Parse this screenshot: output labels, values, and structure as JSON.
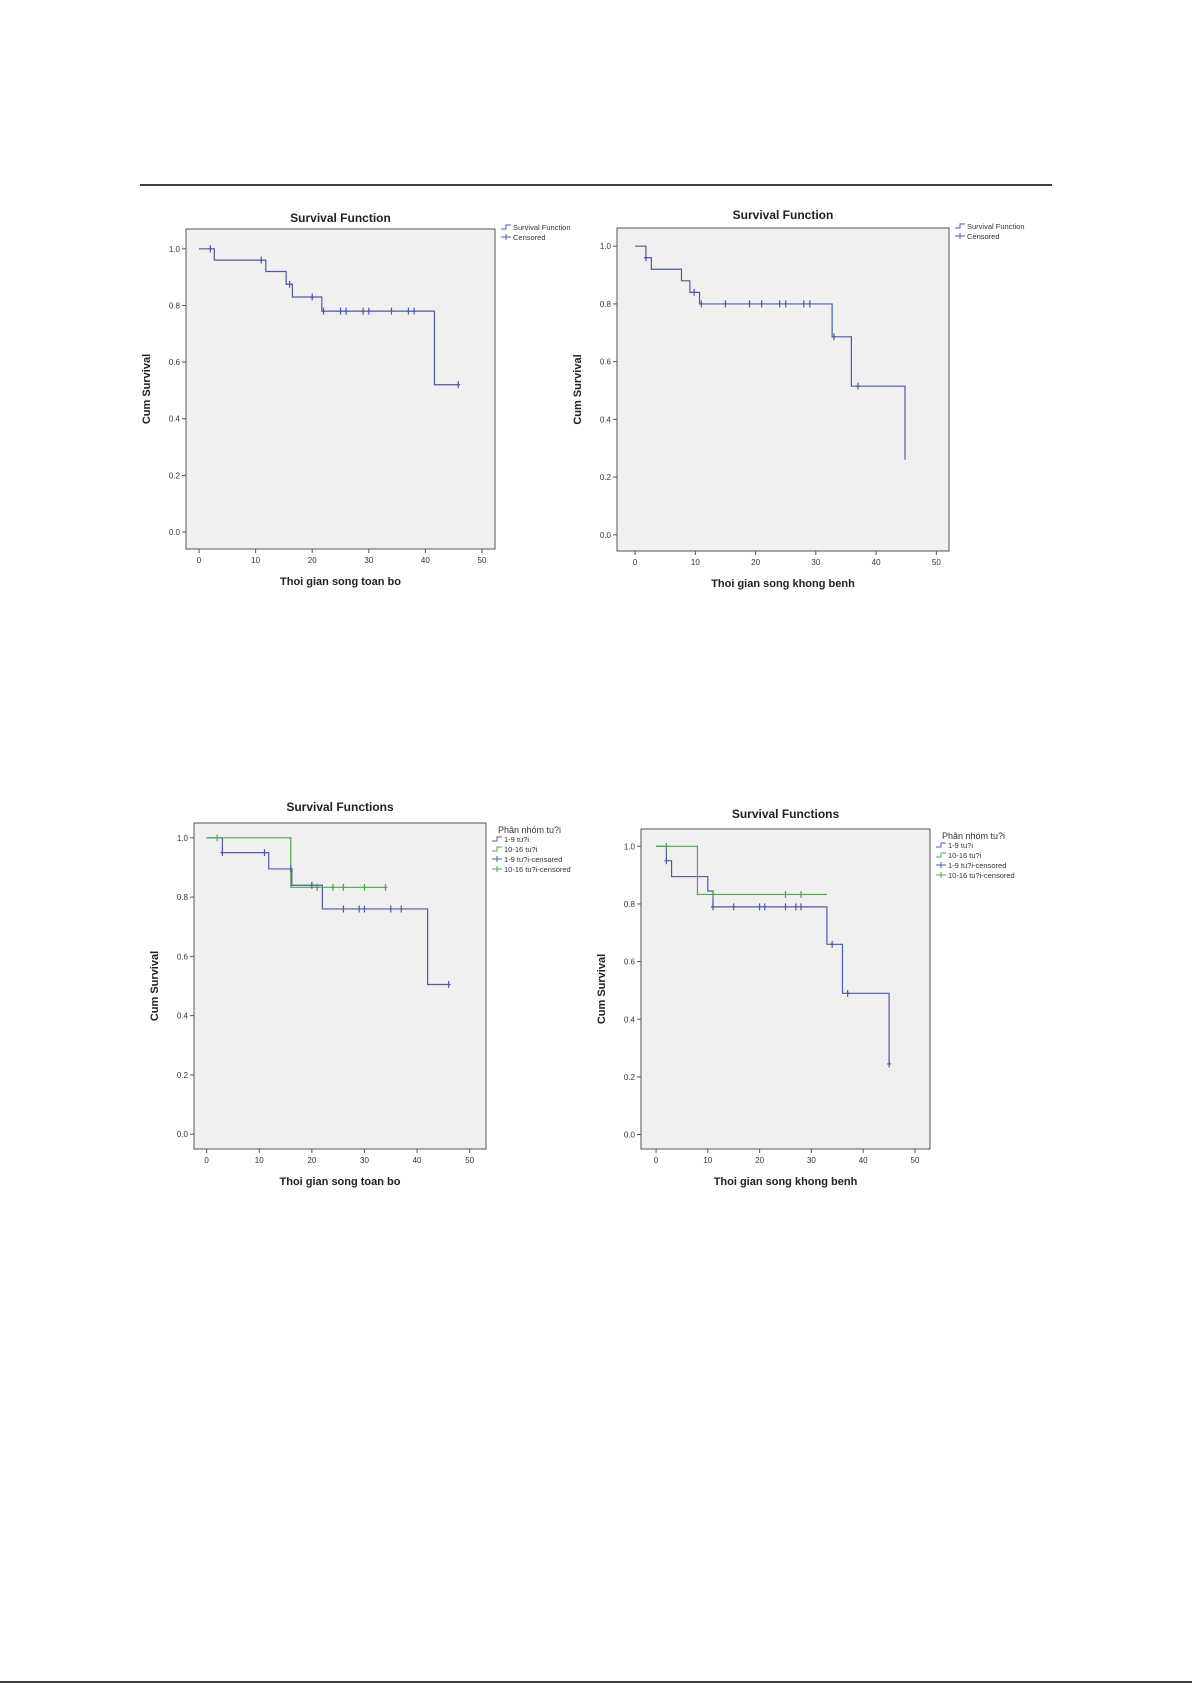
{
  "chart_data": [
    {
      "type": "step",
      "title": "Survival Function",
      "x_label": "Thoi gian song toan bo",
      "y_label": "Cum Survival",
      "xlim": [
        -2.3,
        52.3
      ],
      "ylim": [
        -0.06,
        1.07
      ],
      "xticks": [
        0,
        10,
        20,
        30,
        40,
        50
      ],
      "yticks": [
        {
          "value": 0,
          "label": "0.0"
        },
        {
          "value": 0.2,
          "label": "0.2"
        },
        {
          "value": 0.4,
          "label": "0.4"
        },
        {
          "value": 0.6,
          "label": "0.6"
        },
        {
          "value": 0.8,
          "label": "0.8"
        },
        {
          "value": 1,
          "label": "1.0"
        }
      ],
      "series": [
        {
          "name": "Survival Function",
          "kind": "step",
          "color": "#4b5ca6",
          "x": [
            0,
            2.7,
            11.8,
            15.4,
            16.5,
            21.7,
            41.6,
            45.8
          ],
          "values": [
            1,
            0.96,
            0.92,
            0.875,
            0.83,
            0.78,
            0.52,
            0.52
          ]
        },
        {
          "name": "Censored",
          "kind": "censored",
          "color": "#4b5ca6",
          "x": [
            2,
            11,
            16,
            20,
            22,
            25,
            26,
            29,
            30,
            34,
            37,
            38,
            45.8
          ],
          "values": [
            1,
            0.96,
            0.875,
            0.83,
            0.78,
            0.78,
            0.78,
            0.78,
            0.78,
            0.78,
            0.78,
            0.78,
            0.52
          ]
        }
      ]
    },
    {
      "type": "step",
      "title": "Survival Function",
      "x_label": "Thoi gian song khong benh",
      "y_label": "Cum Survival",
      "xlim": [
        -3,
        52.1
      ],
      "ylim": [
        -0.056,
        1.063
      ],
      "xticks": [
        0,
        10,
        20,
        30,
        40,
        50
      ],
      "yticks": [
        {
          "value": 0,
          "label": "0.0"
        },
        {
          "value": 0.2,
          "label": "0.2"
        },
        {
          "value": 0.4,
          "label": "0.4"
        },
        {
          "value": 0.6,
          "label": "0.6"
        },
        {
          "value": 0.8,
          "label": "0.8"
        },
        {
          "value": 1,
          "label": "1.0"
        }
      ],
      "series": [
        {
          "name": "Survival Function",
          "kind": "step",
          "color": "#4b5ca6",
          "x": [
            0,
            1.8,
            2.7,
            7.7,
            9.1,
            10.7,
            32.7,
            35.9,
            44.8
          ],
          "values": [
            1,
            0.96,
            0.92,
            0.88,
            0.84,
            0.8,
            0.686,
            0.515,
            0.26
          ]
        },
        {
          "name": "Censored",
          "kind": "censored",
          "color": "#4b5ca6",
          "x": [
            1.8,
            9.8,
            11,
            15,
            19,
            21,
            24,
            25,
            28,
            29,
            33,
            37
          ],
          "values": [
            0.96,
            0.84,
            0.8,
            0.8,
            0.8,
            0.8,
            0.8,
            0.8,
            0.8,
            0.8,
            0.686,
            0.515
          ]
        }
      ]
    },
    {
      "type": "step",
      "title": "Survival Functions",
      "x_label": "Thoi gian song toan bo",
      "y_label": "Cum Survival",
      "legend_title": "Phân nhóm tu?i",
      "xlim": [
        -2.4,
        53.1
      ],
      "ylim": [
        -0.05,
        1.05
      ],
      "xticks": [
        0,
        10,
        20,
        30,
        40,
        50
      ],
      "yticks": [
        {
          "value": 0,
          "label": "0.0"
        },
        {
          "value": 0.2,
          "label": "0.2"
        },
        {
          "value": 0.4,
          "label": "0.4"
        },
        {
          "value": 0.6,
          "label": "0.6"
        },
        {
          "value": 0.8,
          "label": "0.8"
        },
        {
          "value": 1,
          "label": "1.0"
        }
      ],
      "series": [
        {
          "name": "1-9 tu?i",
          "kind": "step",
          "color": "#4b5ca6",
          "x": [
            0,
            3,
            11.8,
            16.2,
            22,
            42,
            46
          ],
          "values": [
            1,
            0.95,
            0.895,
            0.84,
            0.76,
            0.505,
            0.505
          ]
        },
        {
          "name": "10-16 tu?i",
          "kind": "step",
          "color": "#4fa84a",
          "x": [
            0,
            16,
            34
          ],
          "values": [
            1,
            0.833,
            0.833
          ]
        },
        {
          "name": "1-9 tu?i-censored",
          "kind": "censored",
          "color": "#4b5ca6",
          "x": [
            3,
            11,
            16,
            20,
            26,
            29,
            30,
            35,
            37,
            46
          ],
          "values": [
            0.95,
            0.95,
            0.895,
            0.84,
            0.76,
            0.76,
            0.76,
            0.76,
            0.76,
            0.505
          ]
        },
        {
          "name": "10-16 tu?i-censored",
          "kind": "censored",
          "color": "#4fa84a",
          "x": [
            2,
            21,
            24,
            26,
            30,
            34
          ],
          "values": [
            1,
            0.833,
            0.833,
            0.833,
            0.833,
            0.833
          ]
        }
      ]
    },
    {
      "type": "step",
      "title": "Survival Functions",
      "x_label": "Thoi gian song khong benh",
      "y_label": "Cum Survival",
      "legend_title": "Phân nhóm tu?i",
      "xlim": [
        -2.9,
        52.9
      ],
      "ylim": [
        -0.05,
        1.06
      ],
      "xticks": [
        0,
        10,
        20,
        30,
        40,
        50
      ],
      "yticks": [
        {
          "value": 0,
          "label": "0.0"
        },
        {
          "value": 0.2,
          "label": "0.2"
        },
        {
          "value": 0.4,
          "label": "0.4"
        },
        {
          "value": 0.6,
          "label": "0.6"
        },
        {
          "value": 0.8,
          "label": "0.8"
        },
        {
          "value": 1,
          "label": "1.0"
        }
      ],
      "series": [
        {
          "name": "1-9 tu?i",
          "kind": "step",
          "color": "#4b5ca6",
          "x": [
            0,
            2,
            3,
            10,
            11,
            33,
            36,
            45
          ],
          "values": [
            1,
            0.95,
            0.895,
            0.845,
            0.79,
            0.66,
            0.49,
            0.245
          ]
        },
        {
          "name": "10-16 tu?i",
          "kind": "step",
          "color": "#4fa84a",
          "x": [
            0,
            8,
            33
          ],
          "values": [
            1,
            0.833,
            0.833
          ]
        },
        {
          "name": "1-9 tu?i-censored",
          "kind": "censored",
          "color": "#4b5ca6",
          "x": [
            2,
            11,
            15,
            20,
            21,
            25,
            27,
            28,
            34,
            37,
            45
          ],
          "values": [
            0.95,
            0.79,
            0.79,
            0.79,
            0.79,
            0.79,
            0.79,
            0.79,
            0.66,
            0.49,
            0.245
          ]
        },
        {
          "name": "10-16 tu?i-censored",
          "kind": "censored",
          "color": "#4fa84a",
          "x": [
            2,
            11,
            25,
            28
          ],
          "values": [
            1,
            0.833,
            0.833,
            0.833
          ]
        }
      ]
    }
  ]
}
